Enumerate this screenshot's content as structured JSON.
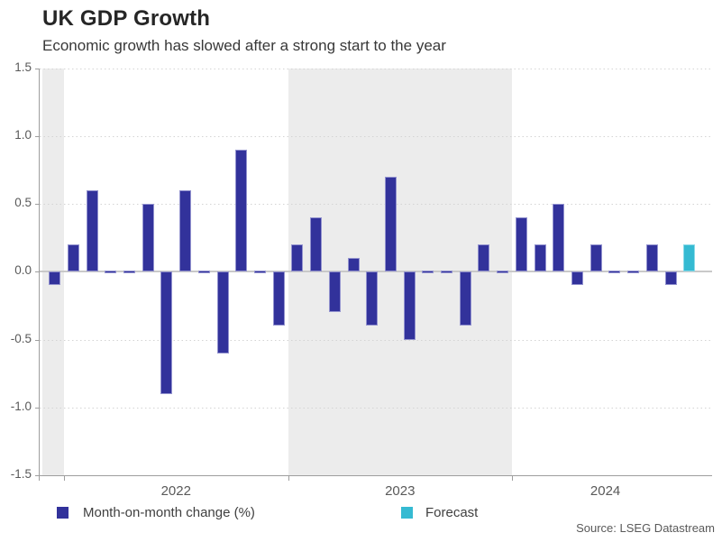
{
  "header": {
    "title": "UK GDP Growth",
    "subtitle": "Economic growth has slowed after a strong start to the year"
  },
  "legend": {
    "items": [
      {
        "label": "Month-on-month change (%)",
        "color": "#32329B"
      },
      {
        "label": "Forecast",
        "color": "#35BAD2"
      }
    ]
  },
  "footer": {
    "source": "Source: LSEG Datastream"
  },
  "chart_data": {
    "type": "bar",
    "title": "UK GDP Growth",
    "subtitle": "Economic growth has slowed after a strong start to the year",
    "x": [
      "2021-12",
      "2022-01",
      "2022-02",
      "2022-03",
      "2022-04",
      "2022-05",
      "2022-06",
      "2022-07",
      "2022-08",
      "2022-09",
      "2022-10",
      "2022-11",
      "2022-12",
      "2023-01",
      "2023-02",
      "2023-03",
      "2023-04",
      "2023-05",
      "2023-06",
      "2023-07",
      "2023-08",
      "2023-09",
      "2023-10",
      "2023-11",
      "2023-12",
      "2024-01",
      "2024-02",
      "2024-03",
      "2024-04",
      "2024-05",
      "2024-06",
      "2024-07",
      "2024-08",
      "2024-09",
      "2024-10"
    ],
    "values": [
      -0.1,
      0.2,
      0.6,
      0.0,
      0.0,
      0.5,
      -0.9,
      0.6,
      0.0,
      -0.6,
      0.9,
      0.0,
      -0.4,
      0.2,
      0.4,
      -0.3,
      0.1,
      -0.4,
      0.7,
      -0.5,
      0.0,
      0.0,
      -0.4,
      0.2,
      0.0,
      0.4,
      0.2,
      0.5,
      -0.1,
      0.2,
      0.0,
      0.0,
      0.2,
      -0.1,
      0.2
    ],
    "series_name": "Month-on-month change (%)",
    "forecast_name": "Forecast",
    "forecast_start_index": 34,
    "ylabel": "",
    "xlabel": "",
    "ylim": [
      -1.5,
      1.5
    ],
    "y_ticks": [
      1.5,
      1.0,
      0.5,
      0.0,
      -0.5,
      -1.0,
      -1.5
    ],
    "year_labels": [
      "2022",
      "2023",
      "2024"
    ],
    "shaded_years": [
      "2021",
      "2023"
    ],
    "grid": "horizontal dotted at 0.5 intervals",
    "legend_position": "bottom",
    "colors": {
      "bar": "#32329B",
      "bar_border": "#9393CF",
      "forecast": "#35BAD2",
      "forecast_border": "#8CDAE8",
      "band": "#ECECEC",
      "zero_line": "#C9C9C9",
      "grid": "#D4D4D4",
      "axis": "#9E9E9E",
      "tick_text": "#595959"
    }
  }
}
